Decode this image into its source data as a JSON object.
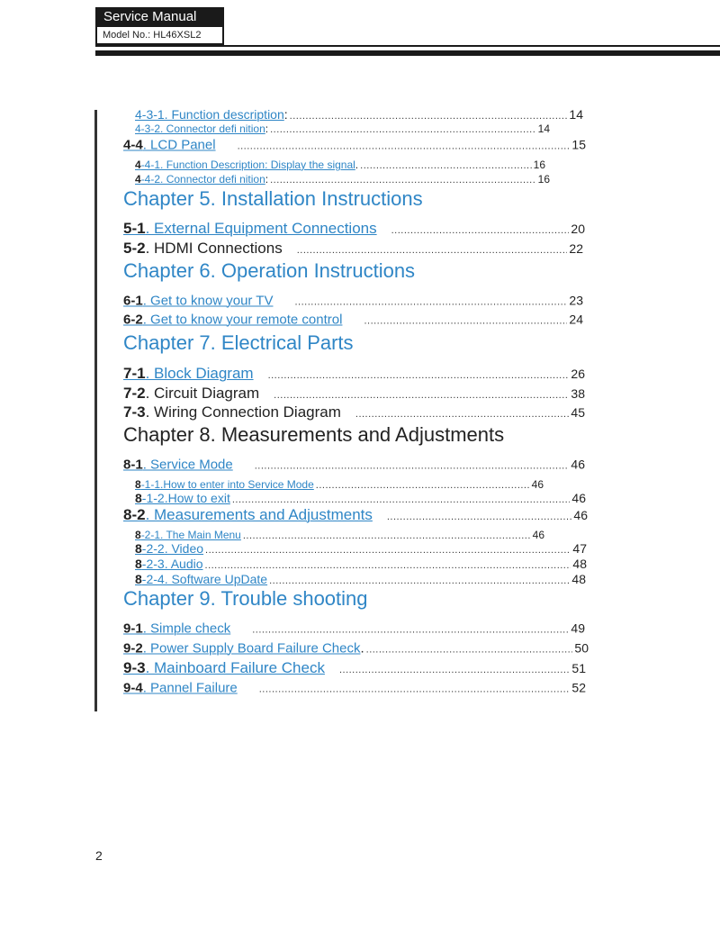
{
  "header": {
    "title": "Service Manual",
    "model": "Model No.: HL46XSL2"
  },
  "page_number": "2",
  "link_color": "#2f86c6",
  "toc": [
    {
      "pre": "",
      "label": "4-3-1. Function description",
      "sep": ":",
      "page": "14",
      "level": 3
    },
    {
      "pre": "",
      "label": "4-3-2. Connector defi nition",
      "sep": ":",
      "page": "14",
      "level": 4
    },
    {
      "pre": "4-4",
      "label": ". LCD Panel",
      "sep": "",
      "page": "15",
      "level": 2
    },
    {
      "pre": "4",
      "label": "-4-1. Function Description: Display the signal",
      "sep": ".",
      "page": "16",
      "level": 4
    },
    {
      "pre": "4",
      "label": "-4-2. Connector defi nition",
      "sep": ":",
      "page": "16",
      "level": 4
    },
    {
      "chapter": "Chapter 5. Installation Instructions",
      "color": "blue"
    },
    {
      "pre": "5-1",
      "label": ". External Equipment Connections",
      "sep": "",
      "page": "20",
      "level": 1
    },
    {
      "pre": "5-2",
      "label": ". HDMI Connections",
      "sep": "",
      "page": "22",
      "level": 1,
      "black": true
    },
    {
      "chapter": "Chapter 6. Operation Instructions",
      "color": "blue"
    },
    {
      "pre": "6-1",
      "label": ". Get to know your TV",
      "sep": "",
      "page": "23",
      "level": 2
    },
    {
      "pre": "6-2",
      "label": ". Get to know your remote control",
      "sep": "",
      "page": "24",
      "level": 2
    },
    {
      "chapter": "Chapter 7. Electrical Parts",
      "color": "blue"
    },
    {
      "pre": "7-1",
      "label": ". Block Diagram",
      "sep": "",
      "page": "26",
      "level": 1
    },
    {
      "pre": "7-2",
      "label": ". Circuit Diagram",
      "sep": "",
      "page": "38",
      "level": 1,
      "black": true
    },
    {
      "pre": "7-3",
      "label": ". Wiring Connection Diagram",
      "sep": "",
      "page": "45",
      "level": 1,
      "black": true
    },
    {
      "chapter": "Chapter 8. Measurements and Adjustments",
      "color": "black"
    },
    {
      "pre": "8-1",
      "label": ". Service Mode",
      "sep": "",
      "page": "46",
      "level": 2
    },
    {
      "pre": "8",
      "label": "-1-1.How to enter into Service Mode",
      "sep": "",
      "page": "46",
      "level": 4
    },
    {
      "pre": "8",
      "label": "-1-2.How to exit",
      "sep": "",
      "page": "46",
      "level": 3
    },
    {
      "pre": "8-2",
      "label": ". Measurements and Adjustments",
      "sep": "",
      "page": "46",
      "level": 1
    },
    {
      "pre": "8",
      "label": "-2-1. The Main Menu",
      "sep": "",
      "page": "46",
      "level": 4
    },
    {
      "pre": "8",
      "label": "-2-2. Video",
      "sep": "",
      "page": "47",
      "level": 3
    },
    {
      "pre": "8",
      "label": "-2-3. Audio",
      "sep": "",
      "page": "48",
      "level": 3
    },
    {
      "pre": "8",
      "label": "-2-4. Software UpDate",
      "sep": "",
      "page": "48",
      "level": 3
    },
    {
      "chapter": "Chapter 9. Trouble shooting",
      "color": "blue"
    },
    {
      "pre": "9-1",
      "label": ". Simple check",
      "sep": "",
      "page": "49",
      "level": 2
    },
    {
      "pre": "9-2",
      "label": ". Power Supply Board Failure Check",
      "sep": ".",
      "page": "50",
      "level": 2
    },
    {
      "pre": "9-3",
      "label": ". Mainboard Failure Check",
      "sep": "",
      "page": "51",
      "level": 1
    },
    {
      "pre": "9-4",
      "label": ". Pannel Failure",
      "sep": "",
      "page": "52",
      "level": 2
    }
  ]
}
